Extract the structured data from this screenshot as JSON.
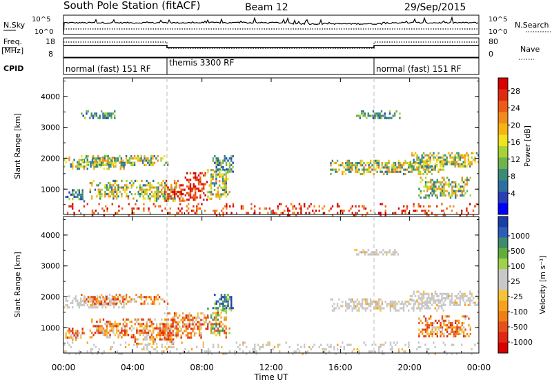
{
  "header": {
    "station": "South Pole Station (fitACF)",
    "beam": "Beam 12",
    "date": "29/Sep/2015"
  },
  "summary_panels": {
    "nsky_label": "N.Sky",
    "nsky_ticks": [
      "10^5",
      "10^0"
    ],
    "nsearch_label": "N.Search",
    "nsearch_ticks": [
      "10^5",
      "10^0"
    ],
    "freq_label": "Freq.",
    "freq_unit": "[MHz]",
    "freq_ticks": [
      "18",
      "8"
    ],
    "nave_label": "Nave",
    "nave_ticks": [
      "80",
      "0"
    ],
    "cpid_label": "CPID",
    "cpid_segments": [
      {
        "label": "normal (fast) 151 RF",
        "start": 0,
        "end": 6
      },
      {
        "label": "themis 3300 RF",
        "start": 6,
        "end": 18
      },
      {
        "label": "normal (fast) 151 RF",
        "start": 18,
        "end": 24
      }
    ]
  },
  "x_axis": {
    "title": "Time UT",
    "ticks": [
      "00:00",
      "04:00",
      "08:00",
      "12:00",
      "16:00",
      "20:00",
      "00:00"
    ],
    "range_hours": [
      0,
      24
    ]
  },
  "chart_data": [
    {
      "type": "heatmap",
      "parameter": "Power",
      "ylabel": "Slant Range [km]",
      "ylim": [
        180,
        4600
      ],
      "y_ticks": [
        "1000",
        "2000",
        "3000",
        "4000"
      ],
      "colorbar_title": "Power [dB]",
      "colorbar_ticks": [
        "28",
        "24",
        "20",
        "16",
        "12",
        "8",
        "4"
      ],
      "colorbar_colors": [
        "#0000ff",
        "#2a3eb8",
        "#2e6fa0",
        "#3a8a78",
        "#6fb24e",
        "#a6d233",
        "#f0e21e",
        "#f6b414",
        "#f28a1c",
        "#ee5a18",
        "#e02a10",
        "#d80000"
      ],
      "regions": [
        {
          "t": [
            0.0,
            3.5
          ],
          "r": [
            1650,
            2050
          ],
          "level": "mid"
        },
        {
          "t": [
            1.0,
            6.0
          ],
          "r": [
            1750,
            2100
          ],
          "level": "mid"
        },
        {
          "t": [
            1.5,
            4.0
          ],
          "r": [
            700,
            1300
          ],
          "level": "mid"
        },
        {
          "t": [
            0.1,
            1.2
          ],
          "r": [
            600,
            1000
          ],
          "level": "low"
        },
        {
          "t": [
            4.0,
            6.5
          ],
          "r": [
            600,
            1300
          ],
          "level": "mid"
        },
        {
          "t": [
            5.8,
            7.0
          ],
          "r": [
            600,
            1300
          ],
          "level": "high"
        },
        {
          "t": [
            7.0,
            8.3
          ],
          "r": [
            650,
            1550
          ],
          "level": "high"
        },
        {
          "t": [
            8.3,
            9.6
          ],
          "r": [
            700,
            1650
          ],
          "level": "mid"
        },
        {
          "t": [
            8.6,
            9.8
          ],
          "r": [
            1550,
            2100
          ],
          "level": "low"
        },
        {
          "t": [
            15.4,
            22.0
          ],
          "r": [
            1500,
            1950
          ],
          "level": "mid"
        },
        {
          "t": [
            20.0,
            24.0
          ],
          "r": [
            1700,
            2200
          ],
          "level": "mid"
        },
        {
          "t": [
            20.5,
            23.5
          ],
          "r": [
            700,
            1400
          ],
          "level": "mid"
        },
        {
          "t": [
            16.8,
            19.5
          ],
          "r": [
            3300,
            3550
          ],
          "level": "low"
        },
        {
          "t": [
            1.0,
            3.0
          ],
          "r": [
            3300,
            3550
          ],
          "level": "low"
        },
        {
          "t": [
            0.0,
            24.0
          ],
          "r": [
            180,
            550
          ],
          "level": "noise"
        }
      ]
    },
    {
      "type": "heatmap",
      "parameter": "Velocity",
      "ylabel": "Slant Range [km]",
      "ylim": [
        180,
        4600
      ],
      "y_ticks": [
        "1000",
        "2000",
        "3000",
        "4000"
      ],
      "colorbar_title": "Velocity [m s⁻¹]",
      "colorbar_ticks": [
        "1000",
        "500",
        "100",
        "25",
        "-25",
        "-100",
        "-500",
        "-1000"
      ],
      "colorbar_colors": [
        "#1a3ea8",
        "#2e5cb8",
        "#3e8a6e",
        "#5fae3a",
        "#9ed24a",
        "#c8c8c8",
        "#c8c8c8",
        "#f6c23a",
        "#f6a21e",
        "#f07e14",
        "#e8501a",
        "#e02810",
        "#d80000"
      ],
      "regions": [
        {
          "t": [
            0.0,
            3.5
          ],
          "r": [
            1650,
            2050
          ],
          "level": "zero"
        },
        {
          "t": [
            1.0,
            6.0
          ],
          "r": [
            1750,
            2100
          ],
          "level": "neg"
        },
        {
          "t": [
            1.5,
            4.0
          ],
          "r": [
            700,
            1300
          ],
          "level": "neg"
        },
        {
          "t": [
            0.1,
            1.2
          ],
          "r": [
            600,
            1000
          ],
          "level": "neg"
        },
        {
          "t": [
            4.0,
            6.5
          ],
          "r": [
            500,
            1300
          ],
          "level": "neg"
        },
        {
          "t": [
            5.8,
            8.3
          ],
          "r": [
            650,
            1500
          ],
          "level": "neg"
        },
        {
          "t": [
            8.3,
            9.6
          ],
          "r": [
            700,
            1650
          ],
          "level": "negmix"
        },
        {
          "t": [
            8.6,
            9.8
          ],
          "r": [
            1550,
            2100
          ],
          "level": "pos"
        },
        {
          "t": [
            15.4,
            22.0
          ],
          "r": [
            1550,
            1950
          ],
          "level": "zero"
        },
        {
          "t": [
            20.0,
            24.0
          ],
          "r": [
            1700,
            2200
          ],
          "level": "zero"
        },
        {
          "t": [
            20.5,
            23.5
          ],
          "r": [
            700,
            1400
          ],
          "level": "neg"
        },
        {
          "t": [
            16.8,
            19.5
          ],
          "r": [
            3350,
            3550
          ],
          "level": "zero"
        },
        {
          "t": [
            0.0,
            24.0
          ],
          "r": [
            180,
            550
          ],
          "level": "zero"
        }
      ]
    }
  ]
}
